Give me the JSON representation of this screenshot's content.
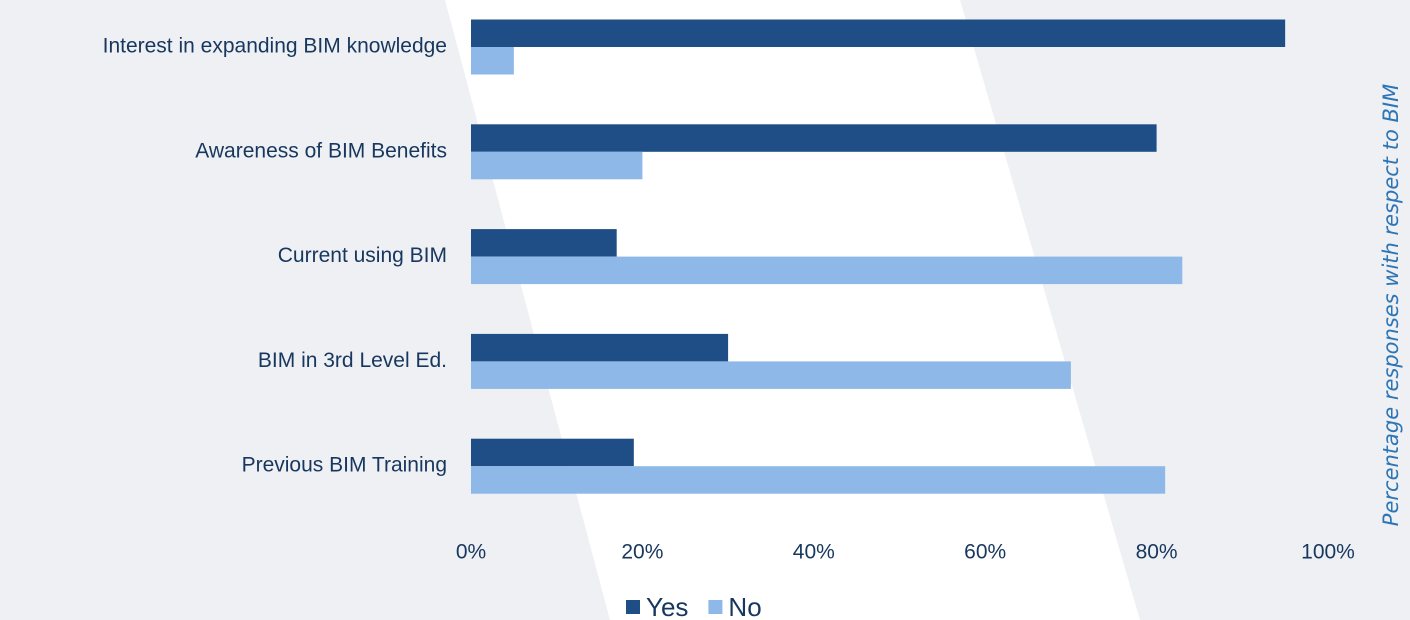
{
  "chart_data": {
    "type": "hbar",
    "side_label": "Percentage responses with respect to BIM",
    "categories": [
      "Interest in expanding BIM knowledge",
      "Awareness of BIM Benefits",
      "Current using BIM",
      "BIM in 3rd Level Ed.",
      "Previous BIM Training"
    ],
    "series": [
      {
        "name": "Yes",
        "color": "#1f4e86",
        "values": [
          95,
          80,
          17,
          30,
          19
        ]
      },
      {
        "name": "No",
        "color": "#8db8e8",
        "values": [
          5,
          20,
          83,
          70,
          81
        ]
      }
    ],
    "xlim": [
      0,
      100
    ],
    "xticks": [
      {
        "value": 0,
        "label": "0%"
      },
      {
        "value": 20,
        "label": "20%"
      },
      {
        "value": 40,
        "label": "40%"
      },
      {
        "value": 60,
        "label": "60%"
      },
      {
        "value": 80,
        "label": "80%"
      },
      {
        "value": 100,
        "label": "100%"
      }
    ],
    "legend": "bottom"
  }
}
